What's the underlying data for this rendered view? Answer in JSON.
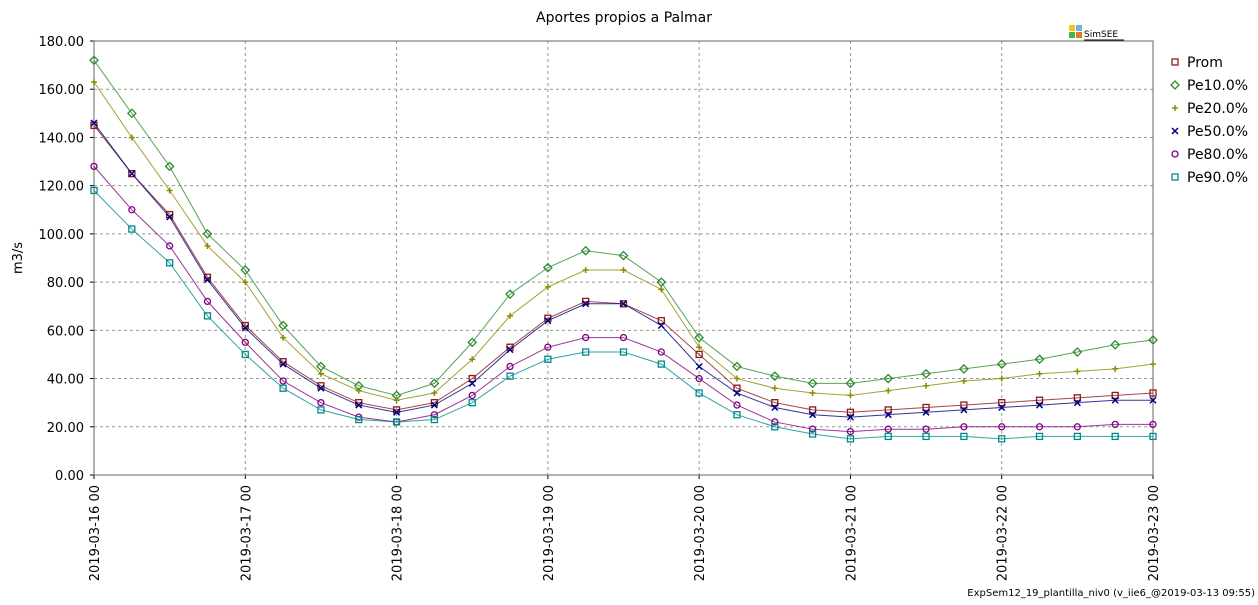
{
  "chart_data": {
    "type": "line",
    "title": "Aportes propios a Palmar",
    "ylabel": "m3/s",
    "logo": "SimSEE",
    "footer": "ExpSem12_19_plantilla_niv0 (v_iie6_@2019-03-13 09:55)",
    "legend": "right",
    "grid": true,
    "xlim": [
      "2019-03-16 00",
      "2019-03-23 00"
    ],
    "xticks": [
      "2019-03-16 00",
      "2019-03-17 00",
      "2019-03-18 00",
      "2019-03-19 00",
      "2019-03-20 00",
      "2019-03-21 00",
      "2019-03-22 00",
      "2019-03-23 00"
    ],
    "ylim": [
      0,
      180
    ],
    "yticks": [
      {
        "value": 0,
        "label": "0.00"
      },
      {
        "value": 20,
        "label": "20.00"
      },
      {
        "value": 40,
        "label": "40.00"
      },
      {
        "value": 60,
        "label": "60.00"
      },
      {
        "value": 80,
        "label": "80.00"
      },
      {
        "value": 100,
        "label": "100.00"
      },
      {
        "value": 120,
        "label": "120.00"
      },
      {
        "value": 140,
        "label": "140.00"
      },
      {
        "value": 160,
        "label": "160.00"
      },
      {
        "value": 180,
        "label": "180.00"
      }
    ],
    "x": [
      "2019-03-16 00",
      "2019-03-16 06",
      "2019-03-16 12",
      "2019-03-16 18",
      "2019-03-17 00",
      "2019-03-17 06",
      "2019-03-17 12",
      "2019-03-17 18",
      "2019-03-18 00",
      "2019-03-18 06",
      "2019-03-18 12",
      "2019-03-18 18",
      "2019-03-19 00",
      "2019-03-19 06",
      "2019-03-19 12",
      "2019-03-19 18",
      "2019-03-20 00",
      "2019-03-20 06",
      "2019-03-20 12",
      "2019-03-20 18",
      "2019-03-21 00",
      "2019-03-21 06",
      "2019-03-21 12",
      "2019-03-21 18",
      "2019-03-22 00",
      "2019-03-22 06",
      "2019-03-22 12",
      "2019-03-22 18",
      "2019-03-23 00"
    ],
    "series": [
      {
        "name": "Prom",
        "color": "#8b1a1a",
        "marker": "square",
        "values": [
          145,
          125,
          108,
          82,
          62,
          47,
          37,
          30,
          27,
          30,
          40,
          53,
          65,
          72,
          71,
          64,
          50,
          36,
          30,
          27,
          26,
          27,
          28,
          29,
          30,
          31,
          32,
          33,
          34
        ]
      },
      {
        "name": "Pe10.0%",
        "color": "#2e8b2e",
        "marker": "diamond",
        "values": [
          172,
          150,
          128,
          100,
          85,
          62,
          45,
          37,
          33,
          38,
          55,
          75,
          86,
          93,
          91,
          80,
          57,
          45,
          41,
          38,
          38,
          40,
          42,
          44,
          46,
          48,
          51,
          54,
          56
        ]
      },
      {
        "name": "Pe20.0%",
        "color": "#8b8b00",
        "marker": "plus",
        "values": [
          163,
          140,
          118,
          95,
          80,
          57,
          42,
          35,
          31,
          34,
          48,
          66,
          78,
          85,
          85,
          77,
          53,
          40,
          36,
          34,
          33,
          35,
          37,
          39,
          40,
          42,
          43,
          44,
          46
        ]
      },
      {
        "name": "Pe50.0%",
        "color": "#000080",
        "marker": "cross",
        "values": [
          146,
          125,
          107,
          81,
          61,
          46,
          36,
          29,
          26,
          29,
          38,
          52,
          64,
          71,
          71,
          62,
          45,
          34,
          28,
          25,
          24,
          25,
          26,
          27,
          28,
          29,
          30,
          31,
          31
        ]
      },
      {
        "name": "Pe80.0%",
        "color": "#800080",
        "marker": "circle",
        "values": [
          128,
          110,
          95,
          72,
          55,
          39,
          30,
          24,
          22,
          25,
          33,
          45,
          53,
          57,
          57,
          51,
          40,
          29,
          22,
          19,
          18,
          19,
          19,
          20,
          20,
          20,
          20,
          21,
          21
        ]
      },
      {
        "name": "Pe90.0%",
        "color": "#008b8b",
        "marker": "square",
        "values": [
          118,
          102,
          88,
          66,
          50,
          36,
          27,
          23,
          22,
          23,
          30,
          41,
          48,
          51,
          51,
          46,
          34,
          25,
          20,
          17,
          15,
          16,
          16,
          16,
          15,
          16,
          16,
          16,
          16
        ]
      }
    ]
  }
}
